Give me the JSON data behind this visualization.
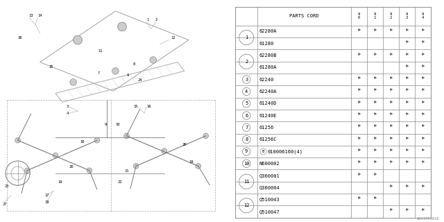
{
  "bg_color": "#ffffff",
  "line_color": "#aaaaaa",
  "dark_line": "#777777",
  "text_color": "#000000",
  "diagram_label": "A611000018",
  "header_cols": [
    "9\n0",
    "9\n1",
    "9\n2",
    "9\n3",
    "9\n4"
  ],
  "rows": [
    {
      "num": "1",
      "parts": [
        "62280A",
        "61280"
      ],
      "marks": [
        [
          "*",
          "*",
          "*",
          "*",
          "*"
        ],
        [
          "",
          "",
          "",
          "*",
          "*"
        ]
      ]
    },
    {
      "num": "2",
      "parts": [
        "62280B",
        "61280A"
      ],
      "marks": [
        [
          "*",
          "*",
          "*",
          "*",
          "*"
        ],
        [
          "",
          "",
          "",
          "*",
          "*"
        ]
      ]
    },
    {
      "num": "3",
      "parts": [
        "62240"
      ],
      "marks": [
        [
          "*",
          "*",
          "*",
          "*",
          "*"
        ]
      ]
    },
    {
      "num": "4",
      "parts": [
        "62240A"
      ],
      "marks": [
        [
          "*",
          "*",
          "*",
          "*",
          "*"
        ]
      ]
    },
    {
      "num": "5",
      "parts": [
        "61240D"
      ],
      "marks": [
        [
          "*",
          "*",
          "*",
          "*",
          "*"
        ]
      ]
    },
    {
      "num": "6",
      "parts": [
        "61240E"
      ],
      "marks": [
        [
          "*",
          "*",
          "*",
          "*",
          "*"
        ]
      ]
    },
    {
      "num": "7",
      "parts": [
        "61256"
      ],
      "marks": [
        [
          "*",
          "*",
          "*",
          "*",
          "*"
        ]
      ]
    },
    {
      "num": "8",
      "parts": [
        "61256C"
      ],
      "marks": [
        [
          "*",
          "*",
          "*",
          "*",
          "*"
        ]
      ]
    },
    {
      "num": "9",
      "parts": [
        "B010006160(4)"
      ],
      "marks": [
        [
          "*",
          "*",
          "*",
          "*",
          "*"
        ]
      ]
    },
    {
      "num": "10",
      "parts": [
        "N600002"
      ],
      "marks": [
        [
          "*",
          "*",
          "*",
          "*",
          "*"
        ]
      ]
    },
    {
      "num": "11",
      "parts": [
        "Q360001",
        "Q360004"
      ],
      "marks": [
        [
          "*",
          "*",
          "",
          "",
          ""
        ],
        [
          "",
          "",
          "*",
          "*",
          "*"
        ]
      ]
    },
    {
      "num": "12",
      "parts": [
        "Q510043",
        "Q510047"
      ],
      "marks": [
        [
          "*",
          "*",
          "",
          "",
          ""
        ],
        [
          "",
          "",
          "*",
          "*",
          "*"
        ]
      ]
    }
  ],
  "font_size": 5.0,
  "small_font": 4.5,
  "circle_font": 5.0
}
